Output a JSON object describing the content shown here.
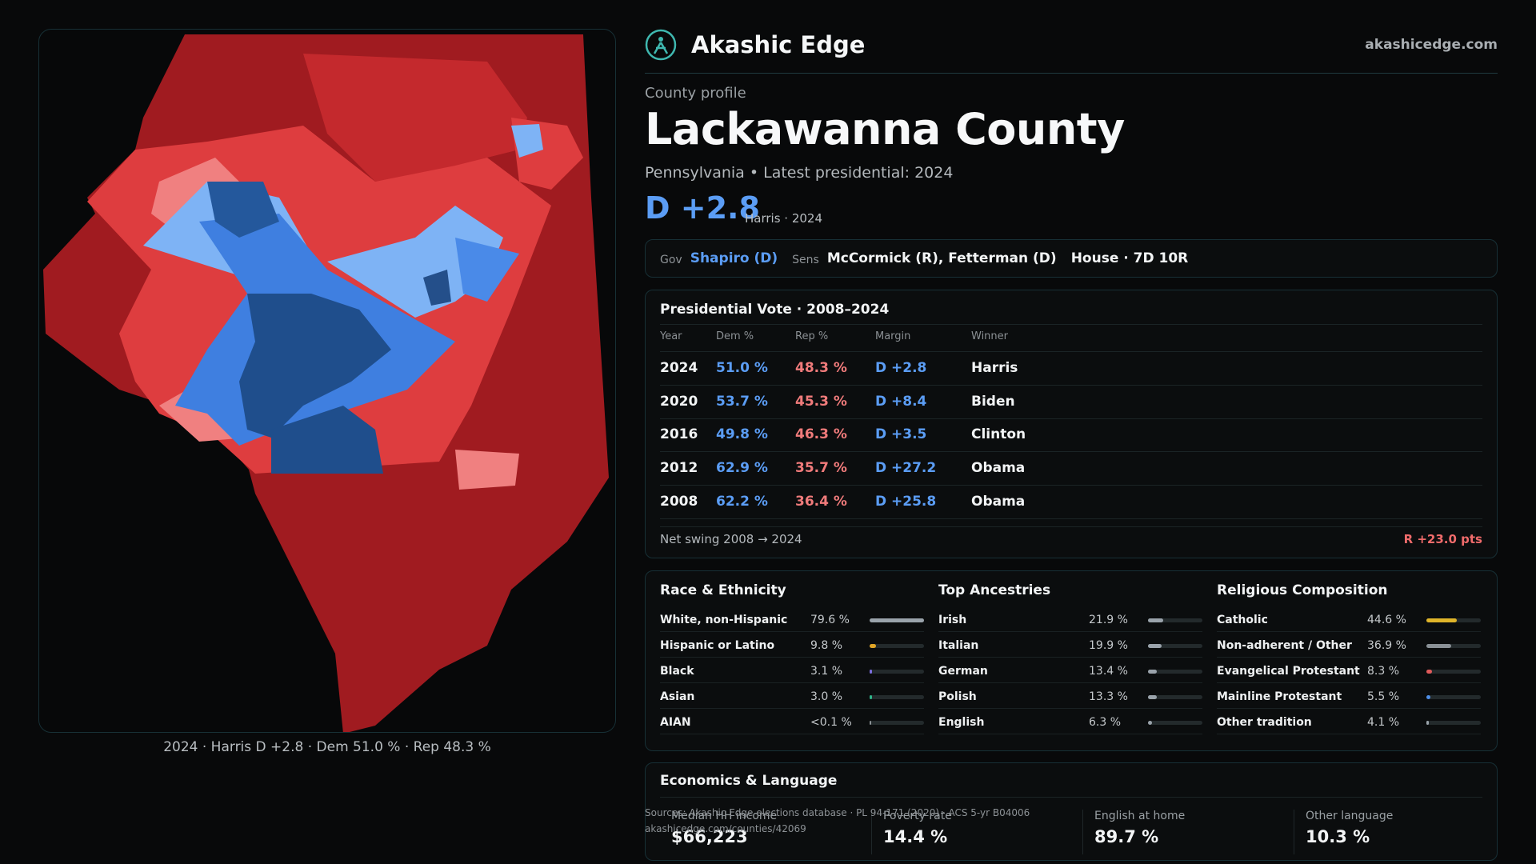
{
  "brand": {
    "name": "Akashic Edge",
    "url": "akashicedge.com"
  },
  "profile": {
    "kicker": "County profile",
    "title": "Lackawanna County",
    "subline": "Pennsylvania • Latest presidential: 2024",
    "margin": "D +2.8",
    "margin_note": "Harris · 2024"
  },
  "officials": {
    "gov_label": "Gov",
    "gov_value": "Shapiro (D)",
    "sens_label": "Sens",
    "sens_value": "McCormick (R), Fetterman (D)",
    "house": "House · 7D 10R"
  },
  "presidential": {
    "title": "Presidential Vote · 2008–2024",
    "headers": [
      "Year",
      "Dem %",
      "Rep %",
      "Margin",
      "Winner"
    ],
    "rows": [
      {
        "year": "2024",
        "dem": "51.0 %",
        "rep": "48.3 %",
        "margin": "D +2.8",
        "winner": "Harris"
      },
      {
        "year": "2020",
        "dem": "53.7 %",
        "rep": "45.3 %",
        "margin": "D +8.4",
        "winner": "Biden"
      },
      {
        "year": "2016",
        "dem": "49.8 %",
        "rep": "46.3 %",
        "margin": "D +3.5",
        "winner": "Clinton"
      },
      {
        "year": "2012",
        "dem": "62.9 %",
        "rep": "35.7 %",
        "margin": "D +27.2",
        "winner": "Obama"
      },
      {
        "year": "2008",
        "dem": "62.2 %",
        "rep": "36.4 %",
        "margin": "D +25.8",
        "winner": "Obama"
      }
    ],
    "swing_label": "Net swing 2008 → 2024",
    "swing_value": "R +23.0 pts"
  },
  "demographics": [
    {
      "title": "Race & Ethnicity",
      "items": [
        {
          "label": "White, non-Hispanic",
          "value": "79.6 %",
          "share": 0.796,
          "color": "#9aa3ab"
        },
        {
          "label": "Hispanic or Latino",
          "value": "9.8 %",
          "share": 0.098,
          "color": "#e0a526"
        },
        {
          "label": "Black",
          "value": "3.1 %",
          "share": 0.031,
          "color": "#7c6fe0"
        },
        {
          "label": "Asian",
          "value": "3.0 %",
          "share": 0.03,
          "color": "#2fb58a"
        },
        {
          "label": "AIAN",
          "value": "<0.1 %",
          "share": 0.001,
          "color": "#8a9094"
        }
      ]
    },
    {
      "title": "Top Ancestries",
      "items": [
        {
          "label": "Irish",
          "value": "21.9 %",
          "share": 0.219,
          "color": "#9aa3ab"
        },
        {
          "label": "Italian",
          "value": "19.9 %",
          "share": 0.199,
          "color": "#9aa3ab"
        },
        {
          "label": "German",
          "value": "13.4 %",
          "share": 0.134,
          "color": "#9aa3ab"
        },
        {
          "label": "Polish",
          "value": "13.3 %",
          "share": 0.133,
          "color": "#9aa3ab"
        },
        {
          "label": "English",
          "value": "6.3 %",
          "share": 0.063,
          "color": "#9aa3ab"
        }
      ]
    },
    {
      "title": "Religious Composition",
      "items": [
        {
          "label": "Catholic",
          "value": "44.6 %",
          "share": 0.446,
          "color": "#e0b52a"
        },
        {
          "label": "Non-adherent / Other",
          "value": "36.9 %",
          "share": 0.369,
          "color": "#8a9196"
        },
        {
          "label": "Evangelical Protestant",
          "value": "8.3 %",
          "share": 0.083,
          "color": "#e05a5a"
        },
        {
          "label": "Mainline Protestant",
          "value": "5.5 %",
          "share": 0.055,
          "color": "#4d8ee8"
        },
        {
          "label": "Other tradition",
          "value": "4.1 %",
          "share": 0.041,
          "color": "#9aa3ab"
        }
      ]
    }
  ],
  "economics": {
    "title": "Economics & Language",
    "items": [
      {
        "label": "Median HH income",
        "value": "$66,223"
      },
      {
        "label": "Poverty rate",
        "value": "14.4 %"
      },
      {
        "label": "English at home",
        "value": "89.7 %"
      },
      {
        "label": "Other language",
        "value": "10.3 %"
      }
    ]
  },
  "sources": {
    "line1": "Sources: Akashic Edge elections database · PL 94-171 (2020) · ACS 5-yr B04006",
    "line2": "akashicedge.com/counties/42069"
  },
  "map": {
    "caption": "2024 · Harris D +2.8 · Dem 51.0 % · Rep 48.3 %",
    "colors": {
      "rep_strong": "#a01b20",
      "rep_mid": "#de3d3f",
      "rep_light": "#f08080",
      "dem_light": "#7eb3f5",
      "dem_mid": "#3f7fe0",
      "dem_strong": "#1f4e8c"
    }
  }
}
